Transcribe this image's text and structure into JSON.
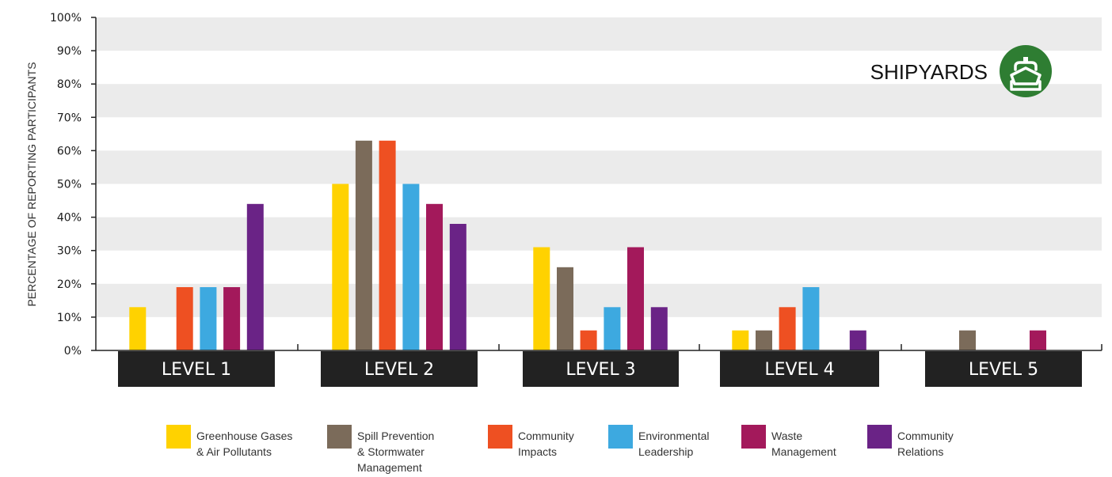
{
  "chart_data": {
    "type": "bar",
    "ylabel": "PERCENTAGE OF REPORTING PARTICIPANTS",
    "xlabel": "",
    "ylim": [
      0,
      100
    ],
    "yticks": [
      "0%",
      "10%",
      "20%",
      "30%",
      "40%",
      "50%",
      "60%",
      "70%",
      "80%",
      "90%",
      "100%"
    ],
    "grid": "alternating horizontal bands",
    "legend_position": "bottom",
    "categories": [
      "LEVEL 1",
      "LEVEL 2",
      "LEVEL 3",
      "LEVEL 4",
      "LEVEL 5"
    ],
    "series": [
      {
        "name": "Greenhouse Gases & Air Pollutants",
        "legend_lines": [
          "Greenhouse Gases",
          "& Air Pollutants"
        ],
        "color": "#FFD200",
        "values": [
          13,
          50,
          31,
          6,
          0
        ]
      },
      {
        "name": "Spill Prevention & Stormwater Management",
        "legend_lines": [
          "Spill Prevention",
          "& Stormwater",
          "Management"
        ],
        "color": "#7B6B5A",
        "values": [
          0,
          63,
          25,
          6,
          6
        ]
      },
      {
        "name": "Community Impacts",
        "legend_lines": [
          "Community",
          "Impacts"
        ],
        "color": "#EE5022",
        "values": [
          19,
          63,
          6,
          13,
          0
        ]
      },
      {
        "name": "Environmental Leadership",
        "legend_lines": [
          "Environmental",
          "Leadership"
        ],
        "color": "#3DA9E0",
        "values": [
          19,
          50,
          13,
          19,
          0
        ]
      },
      {
        "name": "Waste Management",
        "legend_lines": [
          "Waste",
          "Management"
        ],
        "color": "#A3195B",
        "values": [
          19,
          44,
          31,
          0,
          6
        ]
      },
      {
        "name": "Community Relations",
        "legend_lines": [
          "Community",
          "Relations"
        ],
        "color": "#6A2386",
        "values": [
          44,
          38,
          13,
          6,
          0
        ]
      }
    ],
    "badge": {
      "label": "SHIPYARDS",
      "icon": "ship-icon",
      "color": "#2E7D32"
    },
    "colors": {
      "band": "#EBEBEB",
      "category_box": "#222222",
      "axis": "#222222"
    }
  }
}
